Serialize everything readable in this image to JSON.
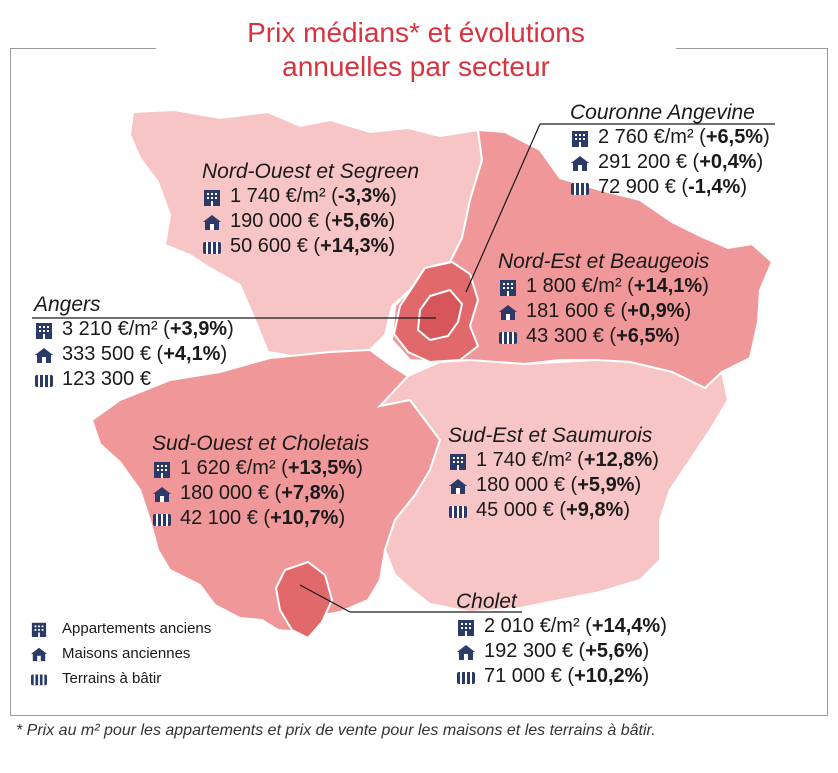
{
  "title": {
    "line1": "Prix médians* et évolutions",
    "line2": "annuelles par secteur"
  },
  "icons": {
    "apartment": "apartment-building-icon",
    "house": "house-icon",
    "land": "building-land-icon"
  },
  "colors": {
    "title": "#d8333f",
    "icon": "#2b3a67",
    "light_region": "#f7c5c5",
    "medium_region": "#f0979a",
    "dark_region": "#e1696c",
    "darker_region": "#d6565b"
  },
  "sectors": {
    "nord_ouest": {
      "name": "Nord-Ouest et Segreen",
      "apt_value": "1 740 €/m² (",
      "apt_change": "-3,3%",
      "house_value": "190 000 € (",
      "house_change": "+5,6%",
      "land_value": "50 600 € (",
      "land_change": "+14,3%"
    },
    "couronne": {
      "name": "Couronne Angevine",
      "apt_value": "2 760 €/m² (",
      "apt_change": "+6,5%",
      "house_value": "291 200 € (",
      "house_change": "+0,4%",
      "land_value": "72 900 € (",
      "land_change": "-1,4%"
    },
    "nord_est": {
      "name": "Nord-Est et Beaugeois",
      "apt_value": "1 800 €/m² (",
      "apt_change": "+14,1%",
      "house_value": "181 600 € (",
      "house_change": "+0,9%",
      "land_value": "43 300 € (",
      "land_change": "+6,5%"
    },
    "angers": {
      "name": "Angers",
      "apt_value": "3 210 €/m² (",
      "apt_change": "+3,9%",
      "house_value": "333 500 € (",
      "house_change": "+4,1%",
      "land_value": "123 300 €"
    },
    "sud_ouest": {
      "name": "Sud-Ouest et Choletais",
      "apt_value": "1 620 €/m² (",
      "apt_change": "+13,5%",
      "house_value": "180 000 € (",
      "house_change": "+7,8%",
      "land_value": "42 100 € (",
      "land_change": "+10,7%"
    },
    "sud_est": {
      "name": "Sud-Est et Saumurois",
      "apt_value": "1 740 €/m² (",
      "apt_change": "+12,8%",
      "house_value": "180 000 € (",
      "house_change": "+5,9%",
      "land_value": "45 000 € (",
      "land_change": "+9,8%"
    },
    "cholet": {
      "name": "Cholet",
      "apt_value": "2 010 €/m² (",
      "apt_change": "+14,4%",
      "house_value": "192 300 € (",
      "house_change": "+5,6%",
      "land_value": "71 000 € (",
      "land_change": "+10,2%"
    }
  },
  "close_paren": ")",
  "legend": {
    "apartments": "Appartements anciens",
    "houses": "Maisons anciennes",
    "land": "Terrains à bâtir"
  },
  "footnote": "* Prix au m² pour les appartements et prix de vente pour les maisons et les terrains à bâtir."
}
